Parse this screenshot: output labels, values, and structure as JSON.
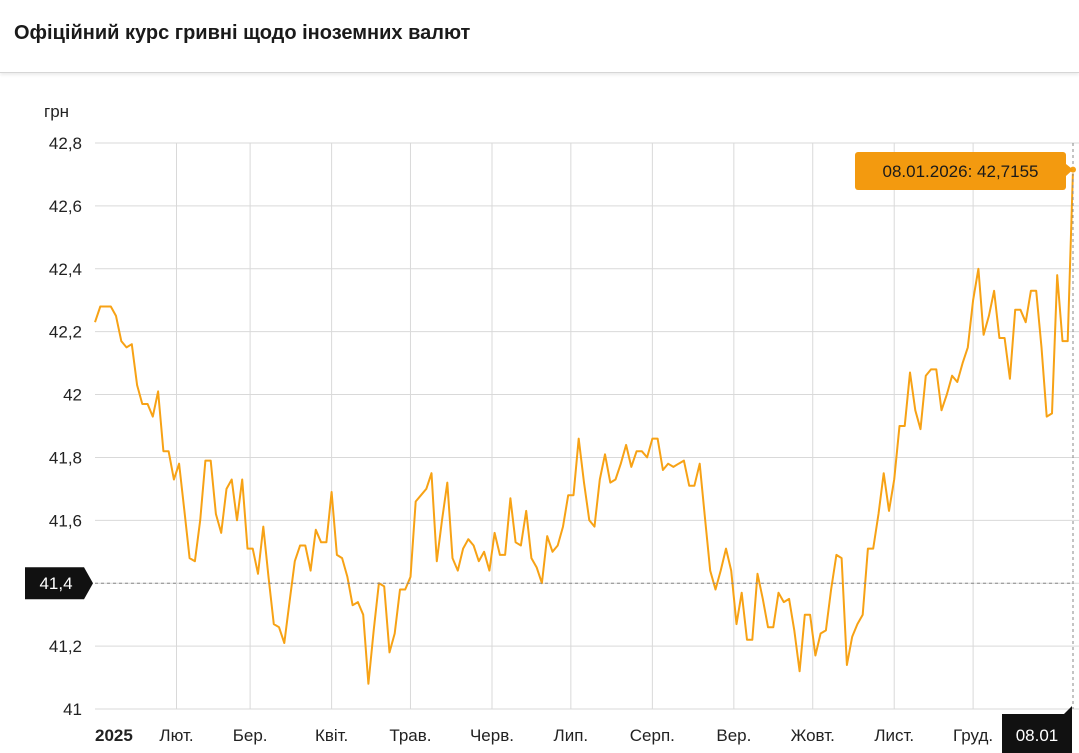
{
  "header": {
    "title": "Офіційний курс гривні щодо іноземних валют"
  },
  "colors": {
    "line": "#F7A215",
    "tooltip_bg": "#F39A0F",
    "marker_bg": "#111111",
    "grid": "#d9d9d9"
  },
  "chart_data": {
    "type": "line",
    "title": "Офіційний курс гривні щодо іноземних валют",
    "ylabel": "грн",
    "ylim": [
      41.0,
      42.8
    ],
    "yticks": [
      "42,8",
      "42,6",
      "42,4",
      "42,2",
      "42",
      "41,8",
      "41,6",
      "41,4",
      "41,2",
      "41"
    ],
    "ytick_values": [
      42.8,
      42.6,
      42.4,
      42.2,
      42.0,
      41.8,
      41.6,
      41.4,
      41.2,
      41.0
    ],
    "xticks": [
      "2025",
      "Лют.",
      "Бер.",
      "Квіт.",
      "Трав.",
      "Черв.",
      "Лип.",
      "Серп.",
      "Вер.",
      "Жовт.",
      "Лист.",
      "Груд."
    ],
    "x_start": "2025-01-01",
    "x_end": "2026-01-08",
    "grid": true,
    "crosshair": {
      "y_label": "41,4",
      "y_value": 41.4,
      "x_label": "08.01"
    },
    "tooltip": "08.01.2026: 42,7155",
    "series": [
      {
        "points": [
          [
            "2025-01-01",
            42.23
          ],
          [
            "2025-01-03",
            42.28
          ],
          [
            "2025-01-07",
            42.28
          ],
          [
            "2025-01-09",
            42.25
          ],
          [
            "2025-01-11",
            42.17
          ],
          [
            "2025-01-13",
            42.15
          ],
          [
            "2025-01-15",
            42.16
          ],
          [
            "2025-01-17",
            42.03
          ],
          [
            "2025-01-19",
            41.97
          ],
          [
            "2025-01-21",
            41.97
          ],
          [
            "2025-01-23",
            41.93
          ],
          [
            "2025-01-25",
            42.01
          ],
          [
            "2025-01-27",
            41.82
          ],
          [
            "2025-01-29",
            41.82
          ],
          [
            "2025-01-31",
            41.73
          ],
          [
            "2025-02-02",
            41.78
          ],
          [
            "2025-02-04",
            41.63
          ],
          [
            "2025-02-06",
            41.48
          ],
          [
            "2025-02-08",
            41.47
          ],
          [
            "2025-02-10",
            41.6
          ],
          [
            "2025-02-12",
            41.79
          ],
          [
            "2025-02-14",
            41.79
          ],
          [
            "2025-02-16",
            41.62
          ],
          [
            "2025-02-18",
            41.56
          ],
          [
            "2025-02-20",
            41.7
          ],
          [
            "2025-02-22",
            41.73
          ],
          [
            "2025-02-24",
            41.6
          ],
          [
            "2025-02-26",
            41.73
          ],
          [
            "2025-02-28",
            41.51
          ],
          [
            "2025-03-02",
            41.51
          ],
          [
            "2025-03-04",
            41.43
          ],
          [
            "2025-03-06",
            41.58
          ],
          [
            "2025-03-08",
            41.42
          ],
          [
            "2025-03-10",
            41.27
          ],
          [
            "2025-03-12",
            41.26
          ],
          [
            "2025-03-14",
            41.21
          ],
          [
            "2025-03-16",
            41.34
          ],
          [
            "2025-03-18",
            41.47
          ],
          [
            "2025-03-20",
            41.52
          ],
          [
            "2025-03-22",
            41.52
          ],
          [
            "2025-03-24",
            41.44
          ],
          [
            "2025-03-26",
            41.57
          ],
          [
            "2025-03-28",
            41.53
          ],
          [
            "2025-03-30",
            41.53
          ],
          [
            "2025-04-01",
            41.69
          ],
          [
            "2025-04-03",
            41.49
          ],
          [
            "2025-04-05",
            41.48
          ],
          [
            "2025-04-07",
            41.42
          ],
          [
            "2025-04-09",
            41.33
          ],
          [
            "2025-04-11",
            41.34
          ],
          [
            "2025-04-13",
            41.3
          ],
          [
            "2025-04-15",
            41.08
          ],
          [
            "2025-04-17",
            41.25
          ],
          [
            "2025-04-19",
            41.4
          ],
          [
            "2025-04-21",
            41.39
          ],
          [
            "2025-04-23",
            41.18
          ],
          [
            "2025-04-25",
            41.24
          ],
          [
            "2025-04-27",
            41.38
          ],
          [
            "2025-04-29",
            41.38
          ],
          [
            "2025-05-01",
            41.42
          ],
          [
            "2025-05-03",
            41.66
          ],
          [
            "2025-05-05",
            41.68
          ],
          [
            "2025-05-07",
            41.7
          ],
          [
            "2025-05-09",
            41.75
          ],
          [
            "2025-05-11",
            41.47
          ],
          [
            "2025-05-13",
            41.6
          ],
          [
            "2025-05-15",
            41.72
          ],
          [
            "2025-05-17",
            41.48
          ],
          [
            "2025-05-19",
            41.44
          ],
          [
            "2025-05-21",
            41.51
          ],
          [
            "2025-05-23",
            41.54
          ],
          [
            "2025-05-25",
            41.52
          ],
          [
            "2025-05-27",
            41.47
          ],
          [
            "2025-05-29",
            41.5
          ],
          [
            "2025-05-31",
            41.44
          ],
          [
            "2025-06-02",
            41.56
          ],
          [
            "2025-06-04",
            41.49
          ],
          [
            "2025-06-06",
            41.49
          ],
          [
            "2025-06-08",
            41.67
          ],
          [
            "2025-06-10",
            41.53
          ],
          [
            "2025-06-12",
            41.52
          ],
          [
            "2025-06-14",
            41.63
          ],
          [
            "2025-06-16",
            41.48
          ],
          [
            "2025-06-18",
            41.45
          ],
          [
            "2025-06-20",
            41.4
          ],
          [
            "2025-06-22",
            41.55
          ],
          [
            "2025-06-24",
            41.5
          ],
          [
            "2025-06-26",
            41.52
          ],
          [
            "2025-06-28",
            41.58
          ],
          [
            "2025-06-30",
            41.68
          ],
          [
            "2025-07-02",
            41.68
          ],
          [
            "2025-07-04",
            41.86
          ],
          [
            "2025-07-06",
            41.72
          ],
          [
            "2025-07-08",
            41.6
          ],
          [
            "2025-07-10",
            41.58
          ],
          [
            "2025-07-12",
            41.73
          ],
          [
            "2025-07-14",
            41.81
          ],
          [
            "2025-07-16",
            41.72
          ],
          [
            "2025-07-18",
            41.73
          ],
          [
            "2025-07-20",
            41.78
          ],
          [
            "2025-07-22",
            41.84
          ],
          [
            "2025-07-24",
            41.77
          ],
          [
            "2025-07-26",
            41.82
          ],
          [
            "2025-07-28",
            41.82
          ],
          [
            "2025-07-30",
            41.8
          ],
          [
            "2025-08-01",
            41.86
          ],
          [
            "2025-08-03",
            41.86
          ],
          [
            "2025-08-05",
            41.76
          ],
          [
            "2025-08-07",
            41.78
          ],
          [
            "2025-08-09",
            41.77
          ],
          [
            "2025-08-11",
            41.78
          ],
          [
            "2025-08-13",
            41.79
          ],
          [
            "2025-08-15",
            41.71
          ],
          [
            "2025-08-17",
            41.71
          ],
          [
            "2025-08-19",
            41.78
          ],
          [
            "2025-08-21",
            41.61
          ],
          [
            "2025-08-23",
            41.44
          ],
          [
            "2025-08-25",
            41.38
          ],
          [
            "2025-08-27",
            41.44
          ],
          [
            "2025-08-29",
            41.51
          ],
          [
            "2025-08-31",
            41.44
          ],
          [
            "2025-09-02",
            41.27
          ],
          [
            "2025-09-04",
            41.37
          ],
          [
            "2025-09-06",
            41.22
          ],
          [
            "2025-09-08",
            41.22
          ],
          [
            "2025-09-10",
            41.43
          ],
          [
            "2025-09-12",
            41.35
          ],
          [
            "2025-09-14",
            41.26
          ],
          [
            "2025-09-16",
            41.26
          ],
          [
            "2025-09-18",
            41.37
          ],
          [
            "2025-09-20",
            41.34
          ],
          [
            "2025-09-22",
            41.35
          ],
          [
            "2025-09-24",
            41.25
          ],
          [
            "2025-09-26",
            41.12
          ],
          [
            "2025-09-28",
            41.3
          ],
          [
            "2025-09-30",
            41.3
          ],
          [
            "2025-10-02",
            41.17
          ],
          [
            "2025-10-04",
            41.24
          ],
          [
            "2025-10-06",
            41.25
          ],
          [
            "2025-10-08",
            41.38
          ],
          [
            "2025-10-10",
            41.49
          ],
          [
            "2025-10-12",
            41.48
          ],
          [
            "2025-10-14",
            41.14
          ],
          [
            "2025-10-16",
            41.23
          ],
          [
            "2025-10-18",
            41.27
          ],
          [
            "2025-10-20",
            41.3
          ],
          [
            "2025-10-22",
            41.51
          ],
          [
            "2025-10-24",
            41.51
          ],
          [
            "2025-10-26",
            41.62
          ],
          [
            "2025-10-28",
            41.75
          ],
          [
            "2025-10-30",
            41.63
          ],
          [
            "2025-11-01",
            41.73
          ],
          [
            "2025-11-03",
            41.9
          ],
          [
            "2025-11-05",
            41.9
          ],
          [
            "2025-11-07",
            42.07
          ],
          [
            "2025-11-09",
            41.95
          ],
          [
            "2025-11-11",
            41.89
          ],
          [
            "2025-11-13",
            42.06
          ],
          [
            "2025-11-15",
            42.08
          ],
          [
            "2025-11-17",
            42.08
          ],
          [
            "2025-11-19",
            41.95
          ],
          [
            "2025-11-21",
            42.0
          ],
          [
            "2025-11-23",
            42.06
          ],
          [
            "2025-11-25",
            42.04
          ],
          [
            "2025-11-27",
            42.1
          ],
          [
            "2025-11-29",
            42.15
          ],
          [
            "2025-12-01",
            42.3
          ],
          [
            "2025-12-03",
            42.4
          ],
          [
            "2025-12-05",
            42.19
          ],
          [
            "2025-12-07",
            42.25
          ],
          [
            "2025-12-09",
            42.33
          ],
          [
            "2025-12-11",
            42.18
          ],
          [
            "2025-12-13",
            42.18
          ],
          [
            "2025-12-15",
            42.05
          ],
          [
            "2025-12-17",
            42.27
          ],
          [
            "2025-12-19",
            42.27
          ],
          [
            "2025-12-21",
            42.23
          ],
          [
            "2025-12-23",
            42.33
          ],
          [
            "2025-12-25",
            42.33
          ],
          [
            "2025-12-27",
            42.15
          ],
          [
            "2025-12-29",
            41.93
          ],
          [
            "2025-12-31",
            41.94
          ],
          [
            "2026-01-02",
            42.38
          ],
          [
            "2026-01-04",
            42.17
          ],
          [
            "2026-01-06",
            42.17
          ],
          [
            "2026-01-08",
            42.7155
          ]
        ]
      }
    ]
  }
}
